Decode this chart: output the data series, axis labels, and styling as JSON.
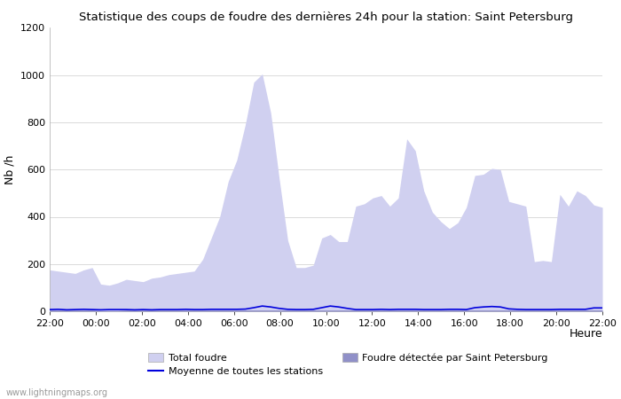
{
  "title": "Statistique des coups de foudre des dernières 24h pour la station: Saint Petersburg",
  "xlabel": "Heure",
  "ylabel": "Nb /h",
  "watermark": "www.lightningmaps.org",
  "xlim_labels": [
    "22:00",
    "00:00",
    "02:00",
    "04:00",
    "06:00",
    "08:00",
    "10:00",
    "12:00",
    "14:00",
    "16:00",
    "18:00",
    "20:00",
    "22:00"
  ],
  "ylim": [
    0,
    1200
  ],
  "yticks": [
    0,
    200,
    400,
    600,
    800,
    1000,
    1200
  ],
  "background_color": "#ffffff",
  "plot_bg_color": "#ffffff",
  "total_foudre_color": "#d0d0f0",
  "detected_color": "#9090c8",
  "moyenne_color": "#0000dd",
  "legend_total": "Total foudre",
  "legend_detected": "Foudre détectée par Saint Petersburg",
  "legend_moyenne": "Moyenne de toutes les stations",
  "total_foudre": [
    175,
    170,
    165,
    160,
    175,
    185,
    115,
    110,
    120,
    135,
    130,
    125,
    140,
    145,
    155,
    160,
    165,
    170,
    220,
    310,
    400,
    550,
    640,
    790,
    970,
    1005,
    840,
    560,
    300,
    185,
    185,
    195,
    310,
    325,
    295,
    295,
    445,
    455,
    480,
    490,
    445,
    480,
    730,
    680,
    510,
    420,
    380,
    350,
    375,
    440,
    575,
    580,
    605,
    600,
    465,
    455,
    445,
    210,
    215,
    210,
    495,
    445,
    510,
    490,
    450,
    440
  ],
  "detected": [
    5,
    5,
    5,
    5,
    5,
    5,
    3,
    3,
    3,
    5,
    5,
    5,
    5,
    5,
    5,
    5,
    5,
    5,
    5,
    5,
    5,
    5,
    5,
    5,
    5,
    5,
    5,
    5,
    5,
    5,
    5,
    5,
    5,
    5,
    5,
    5,
    5,
    5,
    5,
    5,
    5,
    5,
    5,
    5,
    5,
    5,
    5,
    5,
    5,
    5,
    5,
    5,
    5,
    5,
    5,
    5,
    5,
    5,
    5,
    5,
    5,
    5,
    5,
    5,
    5,
    5
  ],
  "moyenne": [
    7,
    8,
    6,
    7,
    8,
    7,
    6,
    7,
    7,
    7,
    6,
    7,
    6,
    7,
    7,
    7,
    8,
    7,
    7,
    8,
    8,
    8,
    8,
    9,
    15,
    22,
    18,
    12,
    8,
    7,
    7,
    8,
    15,
    22,
    18,
    12,
    7,
    7,
    7,
    8,
    7,
    8,
    8,
    8,
    7,
    7,
    7,
    8,
    8,
    7,
    15,
    18,
    20,
    18,
    10,
    8,
    7,
    7,
    7,
    7,
    8,
    8,
    8,
    8,
    14,
    14
  ]
}
